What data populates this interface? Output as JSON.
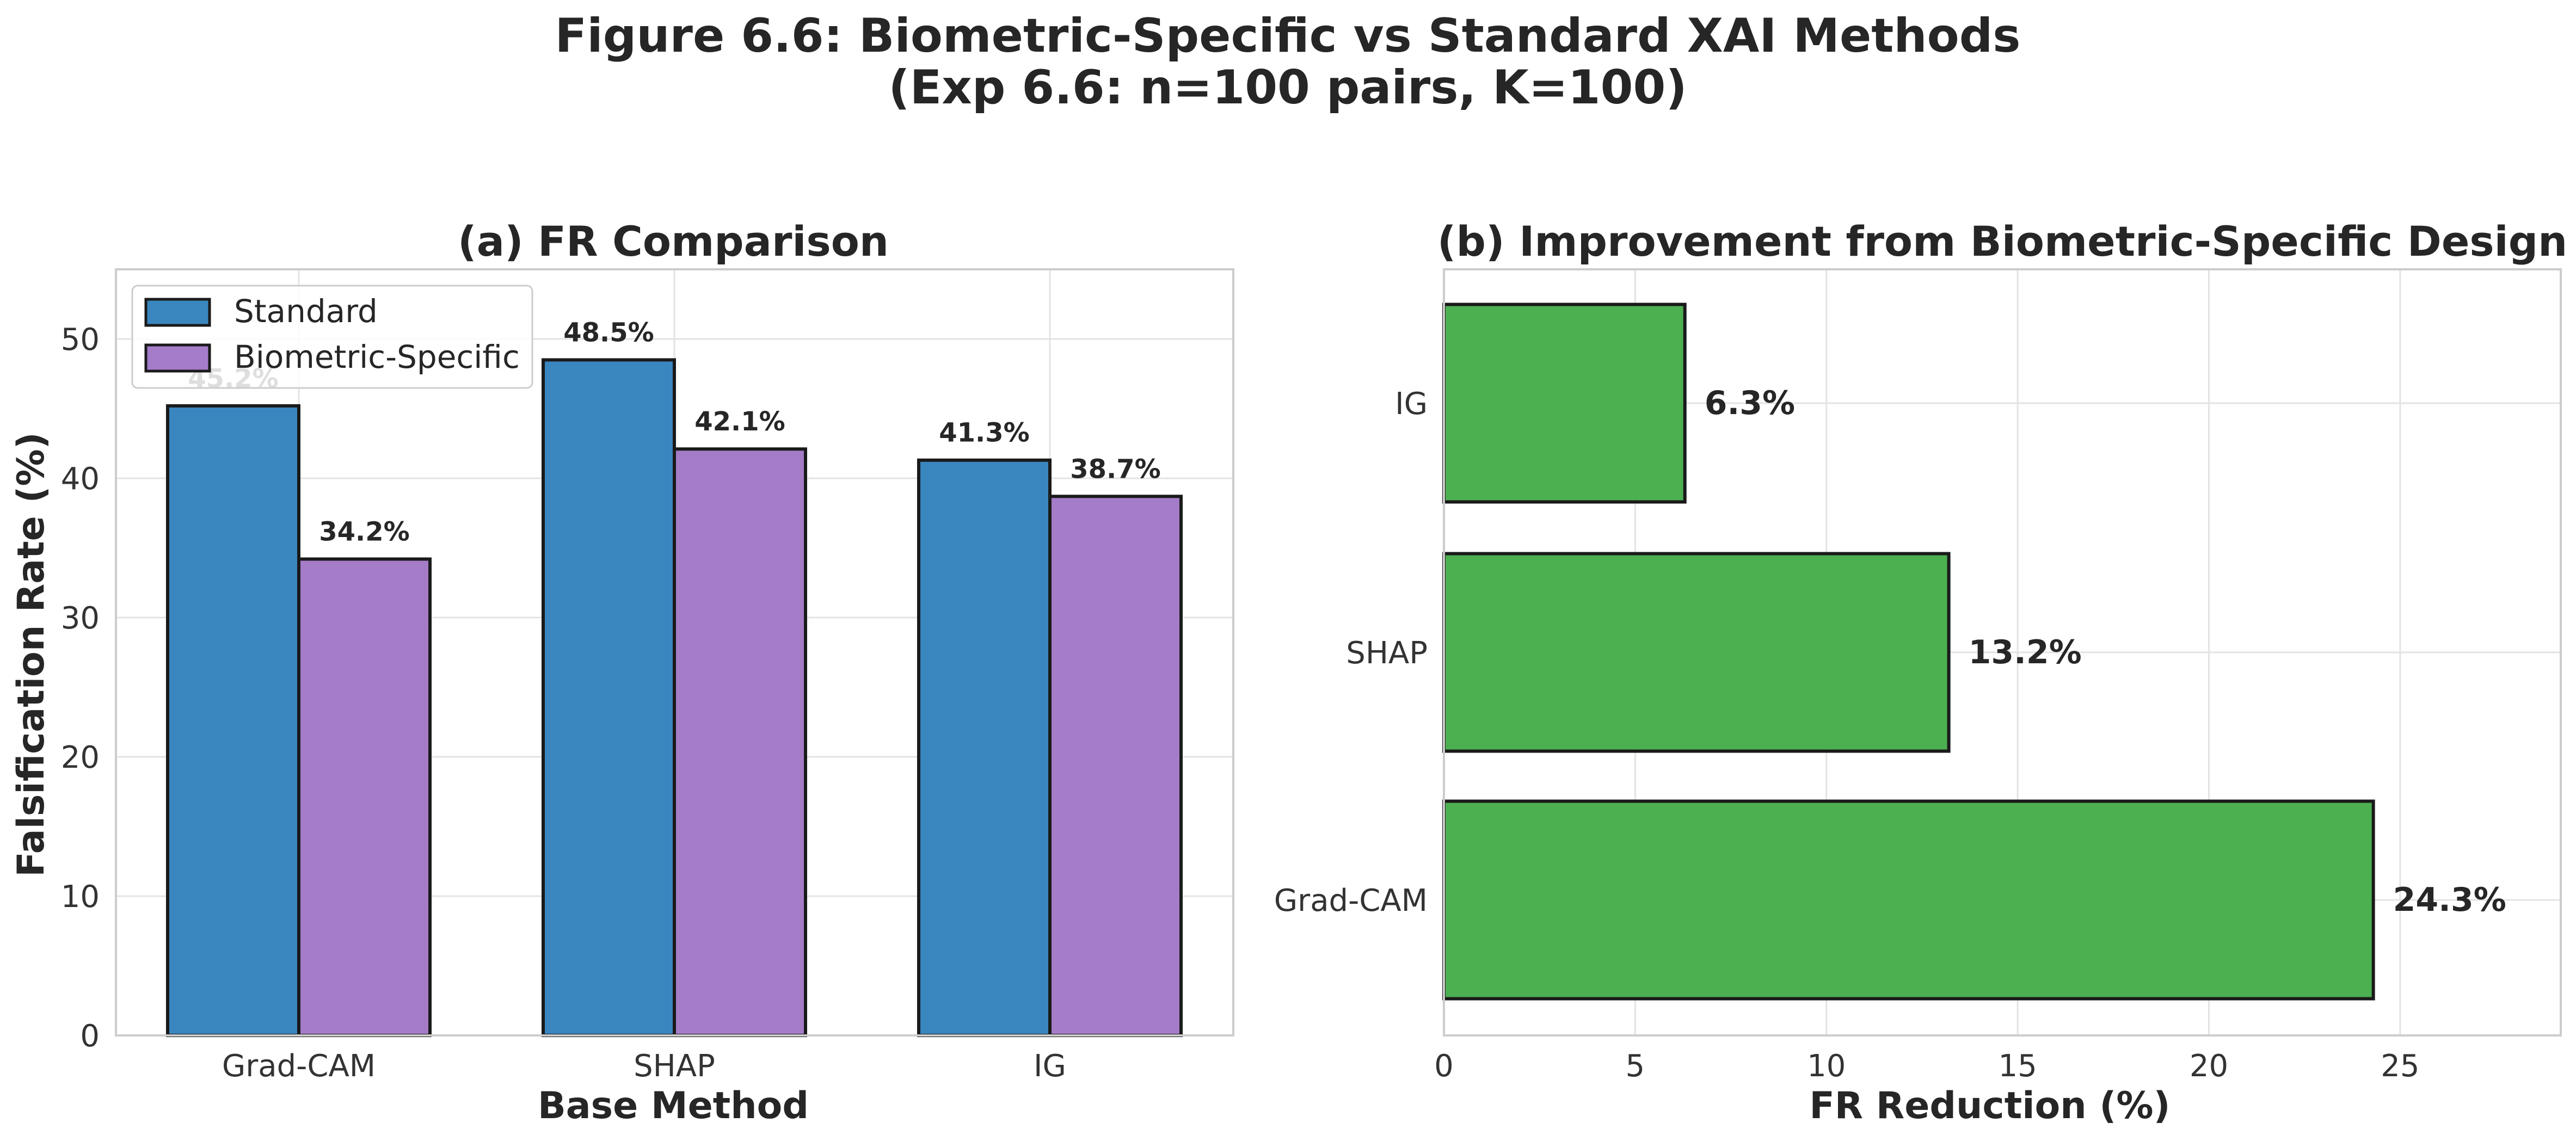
{
  "figure": {
    "title_line1": "Figure 6.6: Biometric-Specific vs Standard XAI Methods",
    "title_line2": "(Exp 6.6: n=100 pairs, K=100)"
  },
  "colors": {
    "standard": "#3a86bf",
    "biometric": "#a57cc8",
    "improvement": "#4caf50"
  },
  "chart_data": [
    {
      "type": "bar",
      "title": "(a) FR Comparison",
      "xlabel": "Base Method",
      "ylabel": "Falsification Rate (%)",
      "categories": [
        "Grad-CAM",
        "SHAP",
        "IG"
      ],
      "series": [
        {
          "name": "Standard",
          "values": [
            45.2,
            48.5,
            41.3
          ],
          "labels": [
            "45.2%",
            "48.5%",
            "41.3%"
          ]
        },
        {
          "name": "Biometric-Specific",
          "values": [
            34.2,
            42.1,
            38.7
          ],
          "labels": [
            "34.2%",
            "42.1%",
            "38.7%"
          ]
        }
      ],
      "ylim": [
        0,
        55
      ],
      "yticks": [
        "0",
        "10",
        "20",
        "30",
        "40",
        "50"
      ],
      "legend": "top-left",
      "grid": true
    },
    {
      "type": "bar",
      "orientation": "horizontal",
      "title": "(b) Improvement from Biometric-Specific Design",
      "xlabel": "FR Reduction (%)",
      "categories": [
        "Grad-CAM",
        "SHAP",
        "IG"
      ],
      "values": [
        24.3,
        13.2,
        6.3
      ],
      "labels": [
        "24.3%",
        "13.2%",
        "6.3%"
      ],
      "xlim": [
        0,
        29.2
      ],
      "xticks": [
        "0",
        "5",
        "10",
        "15",
        "20",
        "25"
      ],
      "grid": true
    }
  ]
}
